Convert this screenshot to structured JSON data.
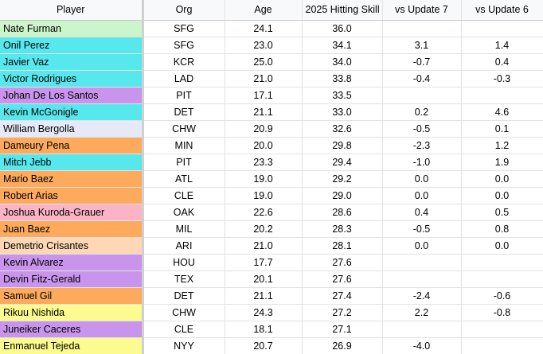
{
  "columns": [
    "Player",
    "Org",
    "Age",
    "2025 Hitting Skill",
    "vs Update 7",
    "vs Update 6"
  ],
  "colors": {
    "green": "#ccf5cc",
    "cyan": "#57e8ee",
    "purple": "#c994ec",
    "lavender": "#e6e9f7",
    "orange": "#fdaa5c",
    "pink": "#fbb3c6",
    "peach": "#fdd7b6",
    "yellow": "#fbfb8f"
  },
  "rows": [
    {
      "player": "Nate Furman",
      "org": "SFG",
      "age": "24.1",
      "skill": "36.0",
      "vs7": "",
      "vs6": "",
      "color": "#ccf5cc"
    },
    {
      "player": "Onil Perez",
      "org": "SFG",
      "age": "23.0",
      "skill": "34.1",
      "vs7": "3.1",
      "vs6": "1.4",
      "color": "#57e8ee"
    },
    {
      "player": "Javier Vaz",
      "org": "KCR",
      "age": "25.0",
      "skill": "34.0",
      "vs7": "-0.7",
      "vs6": "0.4",
      "color": "#57e8ee"
    },
    {
      "player": "Victor Rodrigues",
      "org": "LAD",
      "age": "21.0",
      "skill": "33.8",
      "vs7": "-0.4",
      "vs6": "-0.3",
      "color": "#57e8ee"
    },
    {
      "player": "Johan De Los Santos",
      "org": "PIT",
      "age": "17.1",
      "skill": "33.5",
      "vs7": "",
      "vs6": "",
      "color": "#c994ec"
    },
    {
      "player": "Kevin McGonigle",
      "org": "DET",
      "age": "21.1",
      "skill": "33.0",
      "vs7": "0.2",
      "vs6": "4.6",
      "color": "#57e8ee"
    },
    {
      "player": "William Bergolla",
      "org": "CHW",
      "age": "20.9",
      "skill": "32.6",
      "vs7": "-0.5",
      "vs6": "0.1",
      "color": "#e6e9f7"
    },
    {
      "player": "Dameury Pena",
      "org": "MIN",
      "age": "20.0",
      "skill": "29.8",
      "vs7": "-2.3",
      "vs6": "1.2",
      "color": "#fdaa5c"
    },
    {
      "player": "Mitch Jebb",
      "org": "PIT",
      "age": "23.3",
      "skill": "29.4",
      "vs7": "-1.0",
      "vs6": "1.9",
      "color": "#57e8ee"
    },
    {
      "player": "Mario Baez",
      "org": "ATL",
      "age": "19.0",
      "skill": "29.2",
      "vs7": "0.0",
      "vs6": "0.0",
      "color": "#fdaa5c"
    },
    {
      "player": "Robert Arias",
      "org": "CLE",
      "age": "19.0",
      "skill": "29.0",
      "vs7": "0.0",
      "vs6": "0.0",
      "color": "#fdaa5c"
    },
    {
      "player": "Joshua Kuroda-Grauer",
      "org": "OAK",
      "age": "22.6",
      "skill": "28.6",
      "vs7": "0.4",
      "vs6": "0.5",
      "color": "#fbb3c6"
    },
    {
      "player": "Juan Baez",
      "org": "MIL",
      "age": "20.2",
      "skill": "28.3",
      "vs7": "-0.5",
      "vs6": "0.8",
      "color": "#fdaa5c"
    },
    {
      "player": "Demetrio Crisantes",
      "org": "ARI",
      "age": "21.0",
      "skill": "28.1",
      "vs7": "0.0",
      "vs6": "0.0",
      "color": "#fdd7b6"
    },
    {
      "player": "Kevin Alvarez",
      "org": "HOU",
      "age": "17.7",
      "skill": "27.6",
      "vs7": "",
      "vs6": "",
      "color": "#c994ec"
    },
    {
      "player": "Devin Fitz-Gerald",
      "org": "TEX",
      "age": "20.1",
      "skill": "27.6",
      "vs7": "",
      "vs6": "",
      "color": "#c994ec"
    },
    {
      "player": "Samuel Gil",
      "org": "DET",
      "age": "21.1",
      "skill": "27.4",
      "vs7": "-2.4",
      "vs6": "-0.6",
      "color": "#fdaa5c"
    },
    {
      "player": "Rikuu Nishida",
      "org": "CHW",
      "age": "24.3",
      "skill": "27.2",
      "vs7": "2.2",
      "vs6": "-0.8",
      "color": "#fbfb8f"
    },
    {
      "player": "Juneiker Caceres",
      "org": "CLE",
      "age": "18.1",
      "skill": "27.1",
      "vs7": "",
      "vs6": "",
      "color": "#c994ec"
    },
    {
      "player": "Enmanuel Tejeda",
      "org": "NYY",
      "age": "20.7",
      "skill": "26.9",
      "vs7": "-4.0",
      "vs6": "",
      "color": "#fbfb8f"
    }
  ]
}
